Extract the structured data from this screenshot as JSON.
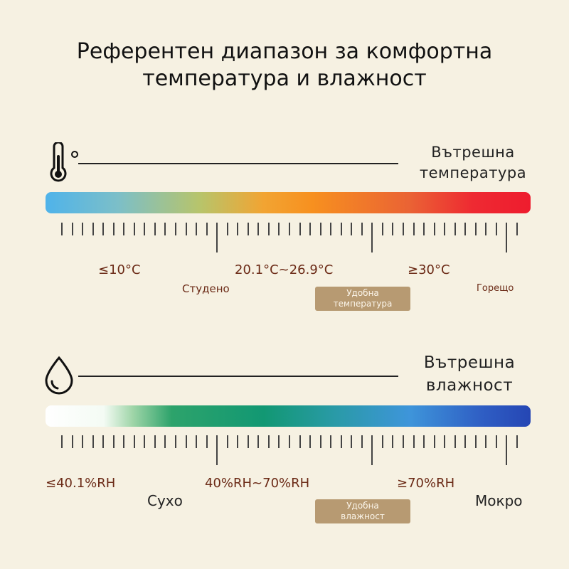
{
  "title": {
    "line1": "Референтен диапазон за комфортна",
    "line2": "температура и влажност"
  },
  "temperature": {
    "icon": "thermometer-icon",
    "label_line1": "Вътрешна",
    "label_line2": "температура",
    "values": {
      "low": "≤10°C",
      "mid": "20.1°C~26.9°C",
      "high": "≥30°C"
    },
    "categories": {
      "low": "Студено",
      "high": "Горещо"
    },
    "badge": {
      "line1": "Удобна",
      "line2": "температура"
    }
  },
  "humidity": {
    "icon": "water-drop-icon",
    "label_line1": "Вътрешна",
    "label_line2": "влажност",
    "values": {
      "low": "≤40.1%RH",
      "mid": "40%RH~70%RH",
      "high": "≥70%RH"
    },
    "categories": {
      "low": "Сухо",
      "high": "Мокро"
    },
    "badge": {
      "line1": "Удобна",
      "line2": "влажност"
    }
  }
}
